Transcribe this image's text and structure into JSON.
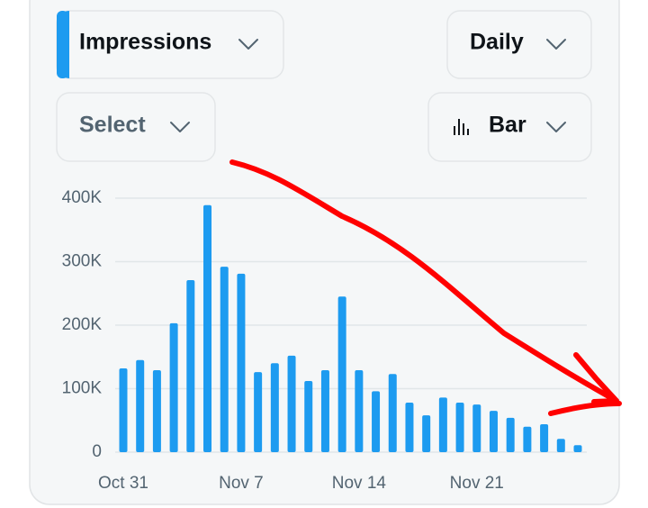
{
  "ui": {
    "metric": "Impressions",
    "interval": "Daily",
    "compare": "Select",
    "chart_kind": "Bar"
  },
  "chart_data": {
    "type": "bar",
    "categories": [
      "Oct 31",
      null,
      null,
      null,
      null,
      null,
      null,
      "Nov 7",
      null,
      null,
      null,
      null,
      null,
      null,
      "Nov 14",
      null,
      null,
      null,
      null,
      null,
      null,
      "Nov 21",
      null,
      null,
      null,
      null,
      null,
      null
    ],
    "values": [
      132000,
      145000,
      129000,
      203000,
      271000,
      389000,
      292000,
      281000,
      126000,
      140000,
      152000,
      112000,
      129000,
      245000,
      129000,
      96000,
      123000,
      78000,
      58000,
      86000,
      78000,
      75000,
      65000,
      54000,
      40000,
      44000,
      21000,
      11000
    ],
    "color": "#1d9bf0",
    "ylim": [
      0,
      400000
    ],
    "yticks": [
      0,
      {
        "value": 100000,
        "label": "100K"
      },
      {
        "value": 200000,
        "label": "200K"
      },
      {
        "value": 300000,
        "label": "300K"
      },
      {
        "value": 400000,
        "label": "400K"
      }
    ],
    "grid": true
  }
}
